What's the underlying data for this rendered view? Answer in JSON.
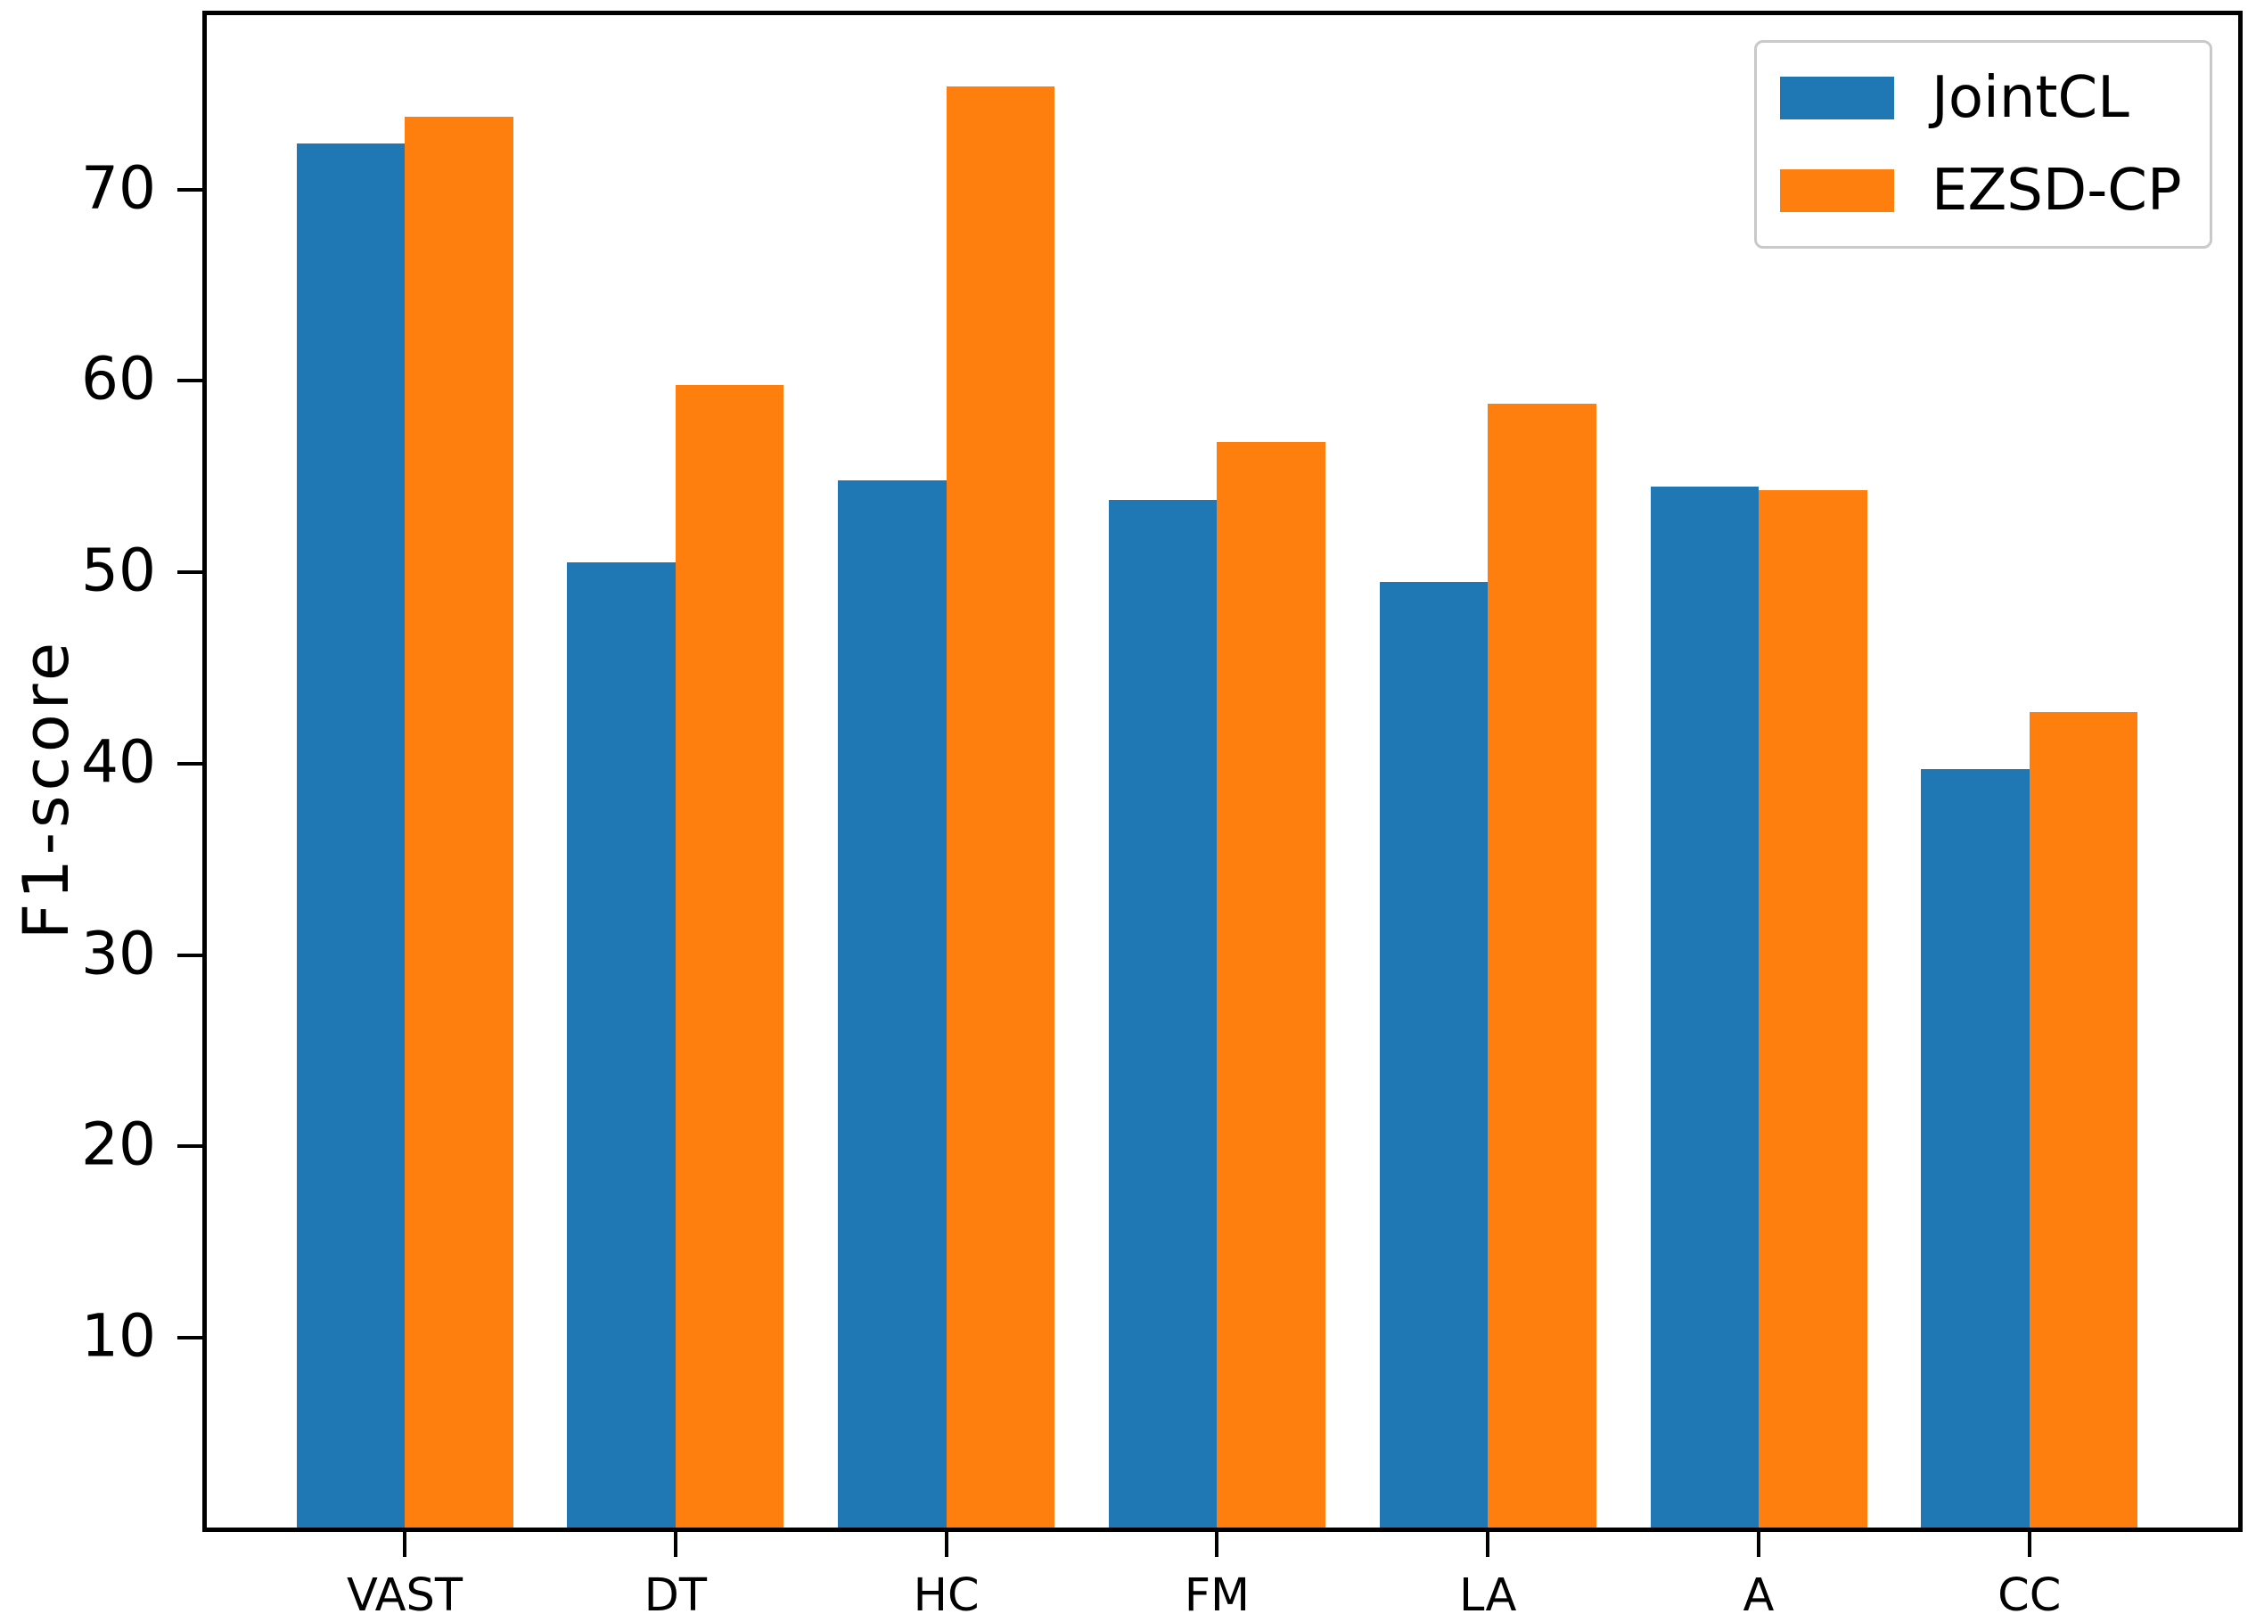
{
  "chart_data": {
    "type": "bar",
    "title": "",
    "xlabel": "",
    "ylabel": "F1-score",
    "categories": [
      "VAST",
      "DT",
      "HC",
      "FM",
      "LA",
      "A",
      "CC"
    ],
    "series": [
      {
        "name": "JointCL",
        "color": "#1f77b4",
        "values": [
          72.4,
          50.5,
          54.8,
          53.8,
          49.5,
          54.5,
          39.7
        ]
      },
      {
        "name": "EZSD-CP",
        "color": "#ff7f0e",
        "values": [
          73.8,
          59.8,
          75.4,
          56.8,
          58.8,
          54.3,
          42.7
        ]
      }
    ],
    "yticks": [
      10,
      20,
      30,
      40,
      50,
      60,
      70
    ],
    "ylim": [
      0,
      79.2
    ],
    "bar_width": 0.4,
    "grid": false,
    "legend_position": "upper right",
    "axis_color": "#000000",
    "background_color": "#ffffff"
  }
}
